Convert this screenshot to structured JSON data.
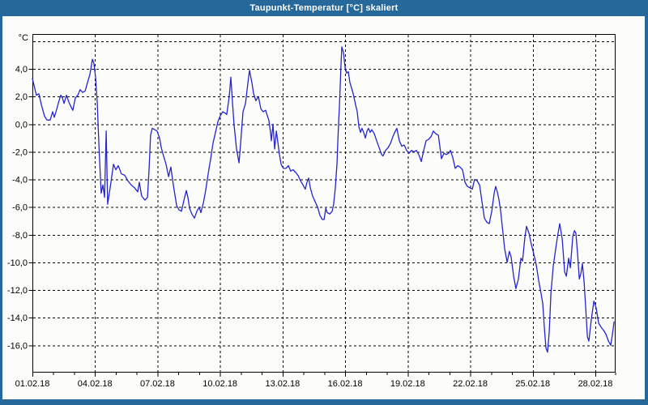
{
  "window": {
    "title": "Taupunkt-Temperatur [°C] skaliert",
    "title_bar_color": "#26689a",
    "border_color": "#26689a",
    "content_background": "#fcfdfa"
  },
  "chart_data": {
    "type": "line",
    "title": "Taupunkt-Temperatur [°C] skaliert",
    "grid": "dashed",
    "legend": "none",
    "line_color": "#2424cf",
    "axis_color": "#000000",
    "x_axis": {
      "kind": "date",
      "range_days": [
        1,
        28.97
      ],
      "minor_tick_every_days": 1,
      "major_ticks": [
        {
          "day": 1,
          "label": "01.02.18"
        },
        {
          "day": 4,
          "label": "04.02.18"
        },
        {
          "day": 7,
          "label": "07.02.18"
        },
        {
          "day": 10,
          "label": "10.02.18"
        },
        {
          "day": 13,
          "label": "13.02.18"
        },
        {
          "day": 16,
          "label": "16.02.18"
        },
        {
          "day": 19,
          "label": "19.02.18"
        },
        {
          "day": 22,
          "label": "22.02.18"
        },
        {
          "day": 25,
          "label": "25.02.18"
        },
        {
          "day": 28,
          "label": "28.02.18"
        }
      ]
    },
    "y_axis": {
      "unit": "°C",
      "range": [
        -18.1,
        6.5
      ],
      "gridline_values": [
        6,
        4,
        2,
        0,
        -2,
        -4,
        -6,
        -8,
        -10,
        -12,
        -14,
        -16
      ],
      "ticks": [
        {
          "value": 4,
          "label": "4,0"
        },
        {
          "value": 2,
          "label": "2,0"
        },
        {
          "value": 0,
          "label": "0,0"
        },
        {
          "value": -2,
          "label": "-2,0"
        },
        {
          "value": -4,
          "label": "-4,0"
        },
        {
          "value": -6,
          "label": "-6,0"
        },
        {
          "value": -8,
          "label": "-8,0"
        },
        {
          "value": -10,
          "label": "-10,0"
        },
        {
          "value": -12,
          "label": "-12,0"
        },
        {
          "value": -14,
          "label": "-14,0"
        },
        {
          "value": -16,
          "label": "-16,0"
        }
      ]
    },
    "series": [
      {
        "name": "Taupunkt",
        "points": [
          [
            1.0,
            3.3
          ],
          [
            1.08,
            2.8
          ],
          [
            1.19,
            2.1
          ],
          [
            1.31,
            2.2
          ],
          [
            1.43,
            1.4
          ],
          [
            1.58,
            0.6
          ],
          [
            1.7,
            0.3
          ],
          [
            1.85,
            0.3
          ],
          [
            1.97,
            0.9
          ],
          [
            2.05,
            0.5
          ],
          [
            2.17,
            1.1
          ],
          [
            2.28,
            1.7
          ],
          [
            2.36,
            2.1
          ],
          [
            2.44,
            1.9
          ],
          [
            2.52,
            1.5
          ],
          [
            2.63,
            2.1
          ],
          [
            2.75,
            1.6
          ],
          [
            2.87,
            1.2
          ],
          [
            2.94,
            1.0
          ],
          [
            3.06,
            1.9
          ],
          [
            3.18,
            2.1
          ],
          [
            3.29,
            2.5
          ],
          [
            3.41,
            2.3
          ],
          [
            3.53,
            2.4
          ],
          [
            3.64,
            3.0
          ],
          [
            3.76,
            3.6
          ],
          [
            3.88,
            4.7
          ],
          [
            3.95,
            4.4
          ],
          [
            4.03,
            3.4
          ],
          [
            4.11,
            1.5
          ],
          [
            4.19,
            -1.5
          ],
          [
            4.3,
            -5.0
          ],
          [
            4.38,
            -4.4
          ],
          [
            4.46,
            -5.3
          ],
          [
            4.54,
            -0.5
          ],
          [
            4.61,
            -5.8
          ],
          [
            4.73,
            -4.6
          ],
          [
            4.89,
            -2.9
          ],
          [
            5.0,
            -3.3
          ],
          [
            5.12,
            -3.0
          ],
          [
            5.27,
            -3.6
          ],
          [
            5.43,
            -3.7
          ],
          [
            5.58,
            -4.1
          ],
          [
            5.74,
            -4.4
          ],
          [
            5.9,
            -4.6
          ],
          [
            6.05,
            -4.9
          ],
          [
            6.13,
            -4.2
          ],
          [
            6.24,
            -5.2
          ],
          [
            6.4,
            -5.5
          ],
          [
            6.52,
            -5.3
          ],
          [
            6.6,
            -3.2
          ],
          [
            6.67,
            -0.8
          ],
          [
            6.75,
            -0.3
          ],
          [
            6.87,
            -0.4
          ],
          [
            6.98,
            -0.5
          ],
          [
            7.1,
            -1.0
          ],
          [
            7.18,
            -1.7
          ],
          [
            7.29,
            -2.3
          ],
          [
            7.41,
            -2.9
          ],
          [
            7.53,
            -3.8
          ],
          [
            7.64,
            -3.1
          ],
          [
            7.76,
            -4.4
          ],
          [
            7.92,
            -5.9
          ],
          [
            8.03,
            -6.2
          ],
          [
            8.15,
            -6.3
          ],
          [
            8.27,
            -5.5
          ],
          [
            8.38,
            -4.8
          ],
          [
            8.46,
            -5.3
          ],
          [
            8.54,
            -6.1
          ],
          [
            8.65,
            -6.5
          ],
          [
            8.77,
            -6.8
          ],
          [
            8.89,
            -6.3
          ],
          [
            9.0,
            -6.0
          ],
          [
            9.08,
            -6.4
          ],
          [
            9.2,
            -5.7
          ],
          [
            9.31,
            -4.8
          ],
          [
            9.43,
            -3.6
          ],
          [
            9.55,
            -2.5
          ],
          [
            9.66,
            -1.4
          ],
          [
            9.78,
            -0.6
          ],
          [
            9.9,
            0.2
          ],
          [
            10.01,
            0.6
          ],
          [
            10.13,
            0.9
          ],
          [
            10.25,
            0.8
          ],
          [
            10.32,
            0.7
          ],
          [
            10.44,
            2.0
          ],
          [
            10.52,
            3.4
          ],
          [
            10.6,
            1.5
          ],
          [
            10.67,
            0.0
          ],
          [
            10.79,
            -1.8
          ],
          [
            10.91,
            -2.8
          ],
          [
            10.98,
            -1.5
          ],
          [
            11.1,
            0.9
          ],
          [
            11.22,
            1.5
          ],
          [
            11.33,
            2.9
          ],
          [
            11.41,
            3.9
          ],
          [
            11.53,
            3.0
          ],
          [
            11.61,
            2.2
          ],
          [
            11.72,
            1.7
          ],
          [
            11.84,
            2.0
          ],
          [
            11.96,
            1.1
          ],
          [
            12.07,
            0.9
          ],
          [
            12.19,
            1.0
          ],
          [
            12.27,
            0.6
          ],
          [
            12.34,
            0.3
          ],
          [
            12.42,
            -0.6
          ],
          [
            12.46,
            -1.2
          ],
          [
            12.54,
            0.0
          ],
          [
            12.62,
            -1.8
          ],
          [
            12.7,
            -0.5
          ],
          [
            12.77,
            -1.3
          ],
          [
            12.85,
            -2.2
          ],
          [
            12.93,
            -2.9
          ],
          [
            13.04,
            -3.2
          ],
          [
            13.16,
            -3.2
          ],
          [
            13.28,
            -3.0
          ],
          [
            13.39,
            -3.4
          ],
          [
            13.51,
            -3.3
          ],
          [
            13.63,
            -3.5
          ],
          [
            13.74,
            -3.7
          ],
          [
            13.86,
            -4.1
          ],
          [
            13.98,
            -4.4
          ],
          [
            14.09,
            -4.7
          ],
          [
            14.17,
            -4.2
          ],
          [
            14.25,
            -3.9
          ],
          [
            14.33,
            -4.6
          ],
          [
            14.44,
            -5.2
          ],
          [
            14.56,
            -5.6
          ],
          [
            14.68,
            -6.0
          ],
          [
            14.79,
            -6.6
          ],
          [
            14.91,
            -6.9
          ],
          [
            14.99,
            -6.9
          ],
          [
            15.07,
            -6.1
          ],
          [
            15.14,
            -6.4
          ],
          [
            15.26,
            -6.5
          ],
          [
            15.38,
            -6.3
          ],
          [
            15.45,
            -5.8
          ],
          [
            15.53,
            -4.6
          ],
          [
            15.61,
            -2.8
          ],
          [
            15.65,
            -1.2
          ],
          [
            15.69,
            0.2
          ],
          [
            15.72,
            1.1
          ],
          [
            15.76,
            2.6
          ],
          [
            15.8,
            4.3
          ],
          [
            15.84,
            5.6
          ],
          [
            15.92,
            5.2
          ],
          [
            16.0,
            4.1
          ],
          [
            16.07,
            3.7
          ],
          [
            16.15,
            3.8
          ],
          [
            16.23,
            3.0
          ],
          [
            16.31,
            2.6
          ],
          [
            16.39,
            2.2
          ],
          [
            16.5,
            1.4
          ],
          [
            16.58,
            0.9
          ],
          [
            16.66,
            -0.2
          ],
          [
            16.74,
            -0.6
          ],
          [
            16.81,
            -0.3
          ],
          [
            16.89,
            -0.6
          ],
          [
            16.97,
            -1.0
          ],
          [
            17.05,
            -0.5
          ],
          [
            17.12,
            -0.3
          ],
          [
            17.2,
            -0.6
          ],
          [
            17.28,
            -0.4
          ],
          [
            17.4,
            -0.7
          ],
          [
            17.51,
            -1.2
          ],
          [
            17.63,
            -1.7
          ],
          [
            17.75,
            -2.2
          ],
          [
            17.82,
            -2.3
          ],
          [
            17.94,
            -1.9
          ],
          [
            18.06,
            -1.7
          ],
          [
            18.17,
            -1.4
          ],
          [
            18.29,
            -0.9
          ],
          [
            18.41,
            -0.5
          ],
          [
            18.48,
            -0.3
          ],
          [
            18.6,
            -1.2
          ],
          [
            18.72,
            -1.6
          ],
          [
            18.83,
            -1.5
          ],
          [
            18.95,
            -1.9
          ],
          [
            19.07,
            -2.1
          ],
          [
            19.18,
            -1.9
          ],
          [
            19.3,
            -2.0
          ],
          [
            19.42,
            -1.9
          ],
          [
            19.53,
            -2.2
          ],
          [
            19.65,
            -2.7
          ],
          [
            19.77,
            -1.9
          ],
          [
            19.88,
            -1.2
          ],
          [
            20.0,
            -1.1
          ],
          [
            20.12,
            -0.9
          ],
          [
            20.23,
            -0.5
          ],
          [
            20.35,
            -0.7
          ],
          [
            20.47,
            -0.8
          ],
          [
            20.54,
            -1.6
          ],
          [
            20.62,
            -2.5
          ],
          [
            20.74,
            -2.1
          ],
          [
            20.85,
            -2.2
          ],
          [
            20.97,
            -2.1
          ],
          [
            21.05,
            -1.9
          ],
          [
            21.16,
            -2.4
          ],
          [
            21.28,
            -3.2
          ],
          [
            21.4,
            -3.0
          ],
          [
            21.51,
            -3.1
          ],
          [
            21.63,
            -3.3
          ],
          [
            21.75,
            -4.2
          ],
          [
            21.86,
            -4.5
          ],
          [
            21.98,
            -4.6
          ],
          [
            22.1,
            -4.7
          ],
          [
            22.21,
            -4.0
          ],
          [
            22.33,
            -4.1
          ],
          [
            22.45,
            -4.4
          ],
          [
            22.56,
            -5.6
          ],
          [
            22.68,
            -6.8
          ],
          [
            22.8,
            -7.1
          ],
          [
            22.91,
            -7.2
          ],
          [
            23.03,
            -6.3
          ],
          [
            23.15,
            -5.0
          ],
          [
            23.22,
            -4.5
          ],
          [
            23.3,
            -4.9
          ],
          [
            23.38,
            -5.5
          ],
          [
            23.46,
            -6.3
          ],
          [
            23.53,
            -7.3
          ],
          [
            23.65,
            -9.0
          ],
          [
            23.77,
            -10.0
          ],
          [
            23.88,
            -9.2
          ],
          [
            23.96,
            -9.6
          ],
          [
            24.08,
            -11.0
          ],
          [
            24.19,
            -11.9
          ],
          [
            24.31,
            -11.2
          ],
          [
            24.43,
            -9.7
          ],
          [
            24.51,
            -9.9
          ],
          [
            24.62,
            -8.2
          ],
          [
            24.7,
            -7.4
          ],
          [
            24.82,
            -7.9
          ],
          [
            24.93,
            -8.7
          ],
          [
            25.05,
            -9.4
          ],
          [
            25.17,
            -10.2
          ],
          [
            25.28,
            -11.3
          ],
          [
            25.4,
            -12.3
          ],
          [
            25.48,
            -13.0
          ],
          [
            25.55,
            -14.6
          ],
          [
            25.63,
            -16.2
          ],
          [
            25.71,
            -16.5
          ],
          [
            25.79,
            -15.0
          ],
          [
            25.87,
            -12.2
          ],
          [
            25.98,
            -10.3
          ],
          [
            26.1,
            -9.0
          ],
          [
            26.18,
            -8.2
          ],
          [
            26.29,
            -7.2
          ],
          [
            26.41,
            -8.3
          ],
          [
            26.53,
            -10.7
          ],
          [
            26.61,
            -11.0
          ],
          [
            26.72,
            -9.7
          ],
          [
            26.8,
            -10.4
          ],
          [
            26.92,
            -8.1
          ],
          [
            27.0,
            -7.7
          ],
          [
            27.07,
            -7.9
          ],
          [
            27.15,
            -9.4
          ],
          [
            27.23,
            -11.2
          ],
          [
            27.31,
            -10.8
          ],
          [
            27.38,
            -10.1
          ],
          [
            27.46,
            -11.4
          ],
          [
            27.54,
            -13.3
          ],
          [
            27.62,
            -15.4
          ],
          [
            27.69,
            -15.7
          ],
          [
            27.81,
            -14.1
          ],
          [
            27.93,
            -12.8
          ],
          [
            28.04,
            -13.3
          ],
          [
            28.16,
            -14.4
          ],
          [
            28.28,
            -14.7
          ],
          [
            28.39,
            -14.9
          ],
          [
            28.51,
            -15.2
          ],
          [
            28.63,
            -15.7
          ],
          [
            28.74,
            -16.0
          ],
          [
            28.82,
            -15.2
          ],
          [
            28.9,
            -14.3
          ]
        ]
      }
    ]
  }
}
